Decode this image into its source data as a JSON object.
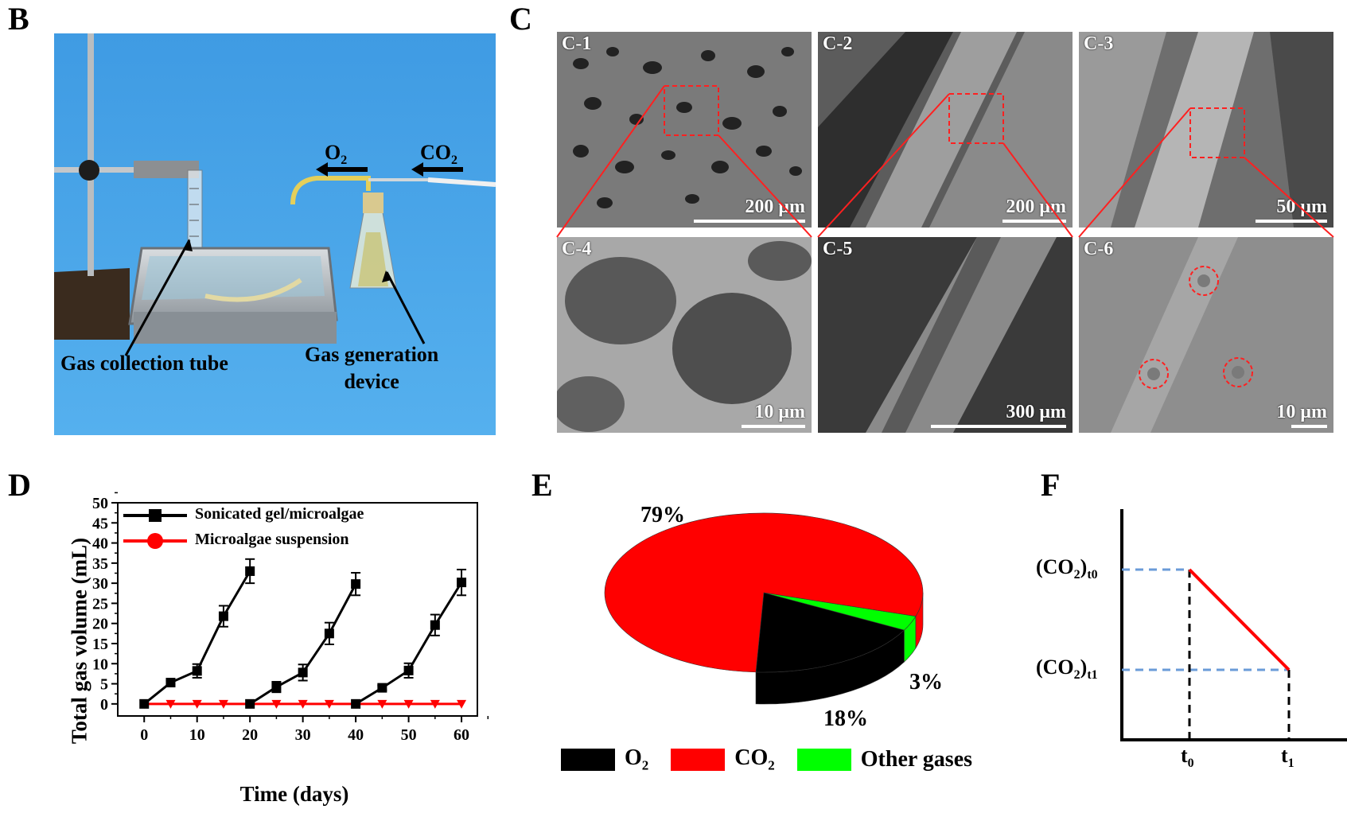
{
  "panels": {
    "B": "B",
    "C": "C",
    "D": "D",
    "E": "E",
    "F": "F"
  },
  "panel_b": {
    "o2_label": "O",
    "o2_sub": "2",
    "co2_label": "CO",
    "co2_sub": "2",
    "gas_collection_tube": "Gas collection tube",
    "gas_generation_line1": "Gas generation",
    "gas_generation_line2": "device"
  },
  "panel_c": {
    "images": [
      {
        "label": "C-1",
        "scale": "200 μm"
      },
      {
        "label": "C-2",
        "scale": "200 μm"
      },
      {
        "label": "C-3",
        "scale": "50 μm"
      },
      {
        "label": "C-4",
        "scale": "10 μm"
      },
      {
        "label": "C-5",
        "scale": "300 μm"
      },
      {
        "label": "C-6",
        "scale": "10 μm"
      }
    ]
  },
  "colors": {
    "red": "#ff0000",
    "black": "#000000",
    "green": "#00ff00",
    "dashed_blue": "#6a9bd8",
    "photo_bg": "#3f9be3"
  },
  "chart_data": [
    {
      "type": "line",
      "panel": "D",
      "xlabel": "Time (days)",
      "ylabel": "Total gas volume (mL)",
      "xlim": [
        -5,
        63
      ],
      "ylim": [
        -3,
        50
      ],
      "xticks": [
        0,
        10,
        20,
        30,
        40,
        50,
        60
      ],
      "yticks": [
        0,
        5,
        10,
        15,
        20,
        25,
        30,
        35,
        40,
        45,
        50
      ],
      "series": [
        {
          "name": "Sonicated gel/microalgae",
          "color": "#000000",
          "marker": "square",
          "segments": [
            {
              "x": [
                0,
                5,
                10,
                15,
                20
              ],
              "y": [
                0,
                5.3,
                8.2,
                21.8,
                33.0
              ],
              "err": [
                0,
                0.5,
                1.7,
                2.6,
                3.0
              ]
            },
            {
              "x": [
                20,
                25,
                30,
                35,
                40
              ],
              "y": [
                0,
                4.2,
                7.8,
                17.5,
                29.8
              ],
              "err": [
                0,
                1.3,
                2.0,
                2.7,
                2.8
              ]
            },
            {
              "x": [
                40,
                45,
                50,
                55,
                60
              ],
              "y": [
                0,
                4.0,
                8.3,
                19.6,
                30.2
              ],
              "err": [
                0,
                0.6,
                1.8,
                2.6,
                3.2
              ]
            }
          ]
        },
        {
          "name": "Microalgae suspension",
          "color": "#ff0000",
          "marker": "triangle-down",
          "x": [
            0,
            5,
            10,
            15,
            20,
            25,
            30,
            35,
            40,
            45,
            50,
            55,
            60
          ],
          "y": [
            0,
            0,
            0,
            0,
            0,
            0,
            0,
            0,
            0,
            0,
            0,
            0,
            0
          ]
        }
      ],
      "legend": "top-left"
    },
    {
      "type": "pie",
      "panel": "E",
      "labels": [
        "O2",
        "CO2",
        "Other gases"
      ],
      "legend_labels": [
        {
          "main": "O",
          "sub": "2"
        },
        {
          "main": "CO",
          "sub": "2"
        },
        {
          "main": "Other gases",
          "sub": ""
        }
      ],
      "values": [
        18,
        79,
        3
      ],
      "value_labels": [
        "18%",
        "79%",
        "3%"
      ],
      "colors": [
        "#000000",
        "#ff0000",
        "#00ff00"
      ],
      "legend": "bottom"
    },
    {
      "type": "line",
      "panel": "F",
      "y_labels": [
        {
          "main": "(CO",
          "sub2": "2",
          "close": ")",
          "subt": "t0"
        },
        {
          "main": "(CO",
          "sub2": "2",
          "close": ")",
          "subt": "t1"
        }
      ],
      "x_labels": [
        {
          "main": "t",
          "sub": "0"
        },
        {
          "main": "t",
          "sub": "1"
        }
      ],
      "line_color": "#ff0000",
      "guide_color": "#6a9bd8"
    }
  ]
}
